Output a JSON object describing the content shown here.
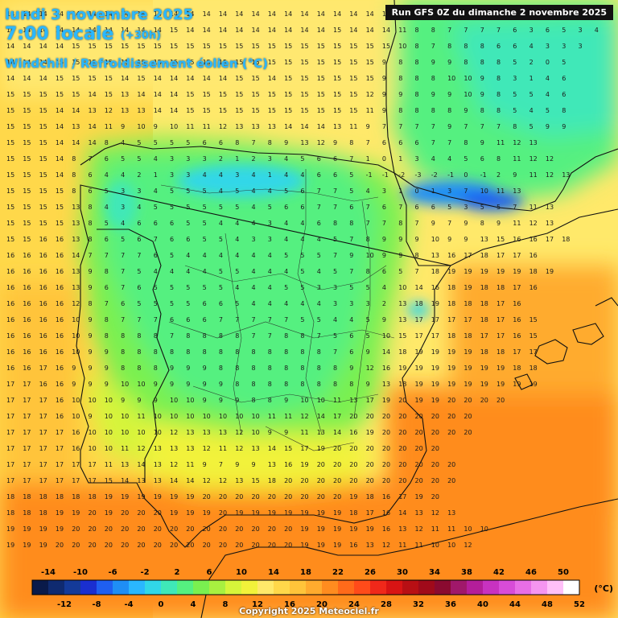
{
  "header": {
    "date": "lundi 3 novembre 2025",
    "time": "7:00 locale",
    "offset": "(+30h)",
    "parameter": "Windchill / Refroidissement éolien (°C)"
  },
  "run_label": "Run GFS 0Z du dimanche 2 novembre 2025",
  "copyright": "Copyright 2025 Meteociel.fr",
  "legend": {
    "unit": "(°C)",
    "upper_ticks": [
      "-14",
      "-10",
      "-6",
      "-2",
      "2",
      "6",
      "10",
      "14",
      "18",
      "22",
      "26",
      "30",
      "34",
      "38",
      "42",
      "46",
      "50"
    ],
    "lower_ticks": [
      "-12",
      "-8",
      "-4",
      "0",
      "4",
      "8",
      "12",
      "16",
      "20",
      "24",
      "28",
      "32",
      "36",
      "40",
      "44",
      "48",
      "52"
    ],
    "colors": [
      "#0a1a4a",
      "#0f2a70",
      "#143a99",
      "#1a2fd0",
      "#1f5ff0",
      "#1f8ef5",
      "#2ab7ff",
      "#31d7e8",
      "#3fe8b8",
      "#55f080",
      "#7af050",
      "#a8f040",
      "#d6f53a",
      "#f2f23a",
      "#ffe96a",
      "#ffd84a",
      "#ffc43a",
      "#ffab2e",
      "#ff8c1f",
      "#ff6a1a",
      "#ff4b1a",
      "#f0281a",
      "#d81414",
      "#b80f14",
      "#a00a1a",
      "#8a0a30",
      "#a0186a",
      "#b41e9a",
      "#c832c0",
      "#d84cd8",
      "#e86ee6",
      "#f595f0",
      "#ffc0f8",
      "#ffffff"
    ]
  },
  "map_values": {
    "value_grid_hint": "numbers printed over map",
    "rows": [
      "14 14 14 14 14 14 14 14 14 14 14 14 14 14 14 14 14 14 14 14 14 14 14 14 11 8 7 7 7 6 5 6 4 7 6 5",
      "14 14 14 14 14 14 14 14 14 14 15 14 14 14 14 14 14 14 14 14 15 14 14 14 11 8 8 7 7 7 7 6 3 6 5 3 4",
      "14 14 14 14 15 15 15 15 15 15 15 15 15 15 15 15 15 15 15 15 15 15 15 15 10 8 7 8 8 8 6 6 4 3 3 3",
      "14 14 14 15 15 15 15 15 15 15 15 15 15 15 15 15 15 15 15 15 15 15 15 9 8 8 9 9 8 8 8 5 2 0 5",
      "14 14 14 15 15 15 15 14 15 14 14 14 14 14 15 15 14 15 15 15 15 15 15 9 8 8 8 10 10 9 8 3 1 4 6",
      "15 15 15 15 15 14 15 13 14 14 14 15 15 15 15 15 15 15 15 15 15 15 12 9 9 8 9 9 10 9 8 5 5 4 6",
      "15 15 15 14 14 13 12 13 13 14 14 15 15 15 15 15 15 15 15 15 15 15 11 9 8 8 8 8 9 8 8 5 4 5 8",
      "15 15 15 14 13 14 11 9 10 9 10 11 11 12 13 13 13 14 14 14 13 11 9 7 7 7 7 9 7 7 7 8 5 9 9",
      "15 15 15 14 14 14 8 4 5 5 5 5 6 6 8 7 8 9 13 12 9 8 7 6 6 6 7 7 8 9 11 12 13",
      "15 15 15 14 8 7 6 5 5 4 3 3 3 2 1 2 3 4 5 6 6 7 1 0 1 3 4 4 5 6 8 11 12 12",
      "15 15 15 14 8 6 4 4 2 1 3 3 4 4 3 4 1 4 4 6 6 5 -1 -1 -2 -3 -2 -1 0 -1 2 9 11 12 13",
      "15 15 15 15 8 6 5 3 3 4 5 5 5 4 5 4 4 5 6 7 7 5 4 3 1 0 1 3 7 10 11 13",
      "15 15 15 15 13 8 4 3 4 5 5 5 5 5 5 4 5 6 6 7 7 6 7 6 7 6 6 5 3 5 5 7 11 13",
      "15 15 15 15 13 8 5 4 6 6 6 5 5 4 4 4 3 4 4 6 8 8 7 7 8 7 9 7 9 8 9 11 12 13",
      "15 15 16 16 13 8 6 5 6 7 6 6 5 5 4 3 3 4 4 4 5 7 8 9 9 9 10 9 9 13 15 16 16 17 18",
      "16 16 16 16 14 7 7 7 7 6 5 4 4 4 4 4 4 5 5 5 7 9 10 9 9 8 13 16 17 18 17 17 16",
      "16 16 16 16 13 9 8 7 5 4 4 4 4 5 5 4 4 4 5 4 5 7 8 6 5 7 18 19 19 19 19 19 18 19",
      "16 16 16 16 13 9 6 7 6 5 5 5 5 5 4 4 4 5 5 3 3 5 5 4 10 14 16 18 19 18 18 17 16",
      "16 16 16 16 12 8 7 6 5 5 5 5 6 6 5 4 4 4 4 4 3 3 3 2 13 18 19 18 18 18 17 16",
      "16 16 16 16 10 9 8 7 7 7 6 6 6 7 7 7 7 7 5 5 4 4 5 9 13 17 17 17 17 18 17 16 15",
      "16 16 16 16 10 9 8 8 8 8 7 8 8 8 8 7 7 8 8 7 5 6 5 10 15 17 17 18 18 17 17 16 15",
      "16 16 16 16 10 9 9 8 8 8 8 8 8 8 8 8 8 8 8 8 7 6 9 14 18 19 19 19 19 18 18 17 17",
      "16 16 17 16 9 9 9 8 8 8 9 9 9 8 8 8 8 8 8 8 8 9 12 16 19 19 19 19 19 19 19 18 18",
      "17 17 16 16 9 9 9 10 10 9 9 9 9 9 8 8 8 8 8 8 8 8 9 13 18 19 19 19 19 19 19 19 19",
      "17 17 17 16 10 10 10 9 9 9 10 10 9 9 9 8 8 9 10 10 11 13 17 19 20 19 19 20 20 20 20",
      "17 17 17 16 10 9 10 10 11 10 10 10 10 10 10 10 11 11 12 14 17 20 20 20 20 20 20 20 20",
      "17 17 17 17 16 10 10 10 10 10 12 13 13 13 12 10 9 9 11 13 14 16 19 20 20 20 20 20 20",
      "17 17 17 17 16 10 10 11 12 13 13 13 12 11 12 13 14 15 17 19 20 20 20 20 20 20 20",
      "17 17 17 17 17 17 11 13 14 13 12 11 9 7 9 9 13 16 19 20 20 20 20 20 20 20 20 20",
      "17 17 17 17 17 17 15 14 13 13 14 14 12 12 13 15 18 20 20 20 20 20 20 20 20 20 20 20",
      "18 18 18 18 18 18 19 19 19 19 19 19 20 20 20 20 20 20 20 20 20 19 18 16 17 19 20",
      "18 18 18 19 19 20 19 20 20 20 19 19 19 20 19 19 19 19 19 19 19 18 17 16 14 13 12 13",
      "19 19 19 19 20 20 20 20 20 20 20 20 20 20 20 20 20 20 19 19 19 19 19 16 13 12 11 11 10 10",
      "19 19 19 20 20 20 20 20 20 20 20 20 20 20 20 20 20 20 19 19 19 16 13 12 11 11 10 10 12"
    ]
  }
}
